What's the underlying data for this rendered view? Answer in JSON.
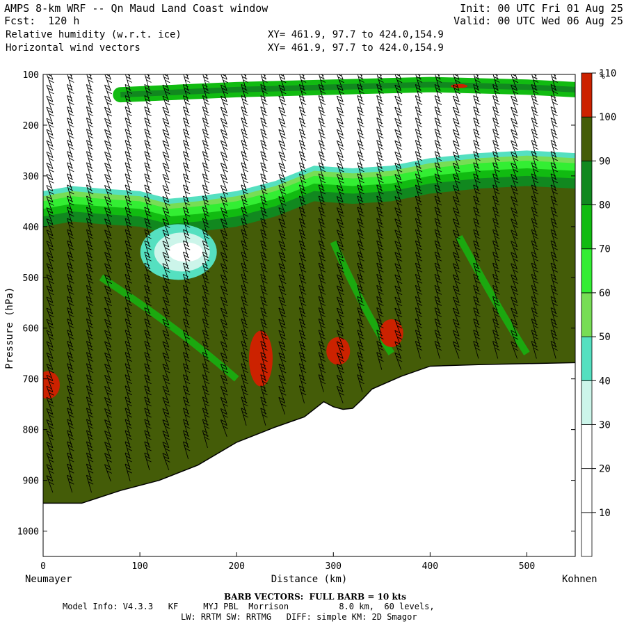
{
  "header": {
    "title": "AMPS 8-km WRF -- Qn Maud Land Coast window",
    "forecast": "Fcst:  120 h",
    "field1": "Relative humidity (w.r.t. ice)",
    "field2": "Horizontal wind vectors",
    "xy1": "XY= 461.9, 97.7 to 424.0,154.9",
    "xy2": "XY= 461.9, 97.7 to 424.0,154.9",
    "init": "Init: 00 UTC Fri 01 Aug 25",
    "valid": "Valid: 00 UTC Wed 06 Aug 25"
  },
  "footer": {
    "barb": "BARB VECTORS:  FULL BARB = 10 kts",
    "model1": "Model Info: V4.3.3   KF     MYJ PBL  Morrison          8.0 km,  60 levels,",
    "model2": "LW: RRTM SW: RRTMG   DIFF: simple KM: 2D Smagor"
  },
  "chart_data": {
    "type": "contour cross-section",
    "xlabel": "Distance (km)",
    "ylabel": "Pressure (hPa)",
    "x_left_label": "Neumayer",
    "x_right_label": "Kohnen",
    "xlim": [
      0,
      550
    ],
    "ylim": [
      1050,
      100
    ],
    "x_ticks": [
      0,
      100,
      200,
      300,
      400,
      500
    ],
    "y_ticks": [
      100,
      200,
      300,
      400,
      500,
      600,
      700,
      800,
      900,
      1000
    ],
    "colorbar": {
      "unit": "%",
      "levels": [
        10,
        20,
        30,
        40,
        50,
        60,
        70,
        80,
        90,
        100,
        110
      ],
      "colors": [
        "#ffffff",
        "#ffffff",
        "#ffffff",
        "#ccf5ea",
        "#55e0c0",
        "#77dd55",
        "#33ee33",
        "#11bb11",
        "#11881f",
        "#445c08",
        "#cc2200"
      ]
    },
    "terrain_surface": {
      "x": [
        0,
        40,
        80,
        120,
        160,
        200,
        240,
        270,
        290,
        300,
        310,
        320,
        330,
        340,
        370,
        400,
        450,
        500,
        550
      ],
      "p": [
        945,
        945,
        920,
        900,
        870,
        825,
        795,
        775,
        745,
        755,
        760,
        758,
        740,
        720,
        695,
        675,
        672,
        670,
        668
      ]
    },
    "moist_layer_top": {
      "x": [
        0,
        30,
        60,
        100,
        130,
        160,
        200,
        240,
        280,
        320,
        360,
        400,
        450,
        500,
        550
      ],
      "p": [
        330,
        320,
        325,
        330,
        345,
        340,
        330,
        310,
        280,
        285,
        280,
        265,
        255,
        250,
        255
      ]
    },
    "dry_pocket": {
      "center_x": 140,
      "center_p": 450
    },
    "upper_green_band": {
      "x": [
        80,
        200,
        300,
        400,
        500,
        550
      ],
      "p": [
        140,
        130,
        125,
        120,
        125,
        130
      ]
    },
    "red_patches": [
      {
        "x": 225,
        "p": 660
      },
      {
        "x": 305,
        "p": 645
      },
      {
        "x": 360,
        "p": 610
      },
      {
        "x": 430,
        "p": 123
      },
      {
        "x": 5,
        "p": 712
      }
    ],
    "barb_columns_x": [
      10,
      30,
      50,
      70,
      90,
      110,
      130,
      150,
      170,
      190,
      210,
      230,
      250,
      270,
      290,
      310,
      330,
      350,
      370,
      390,
      410,
      430,
      450,
      470,
      490,
      510,
      530
    ]
  }
}
